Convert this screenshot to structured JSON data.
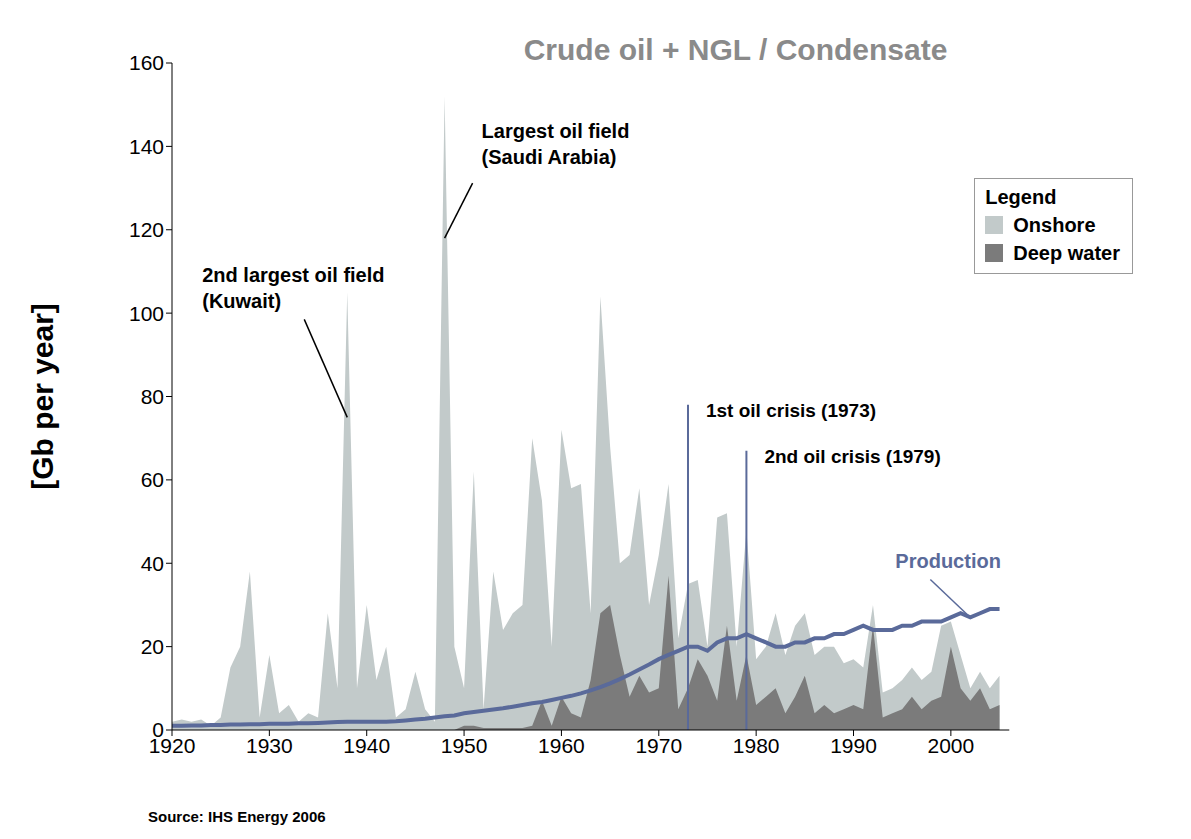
{
  "chart_data": {
    "type": "area",
    "title": "Crude oil + NGL / Condensate",
    "y_label": "[Gb per year]",
    "source": "Source: IHS Energy 2006",
    "legend_title": "Legend",
    "legend": "upper right",
    "x": [
      1920,
      1921,
      1922,
      1923,
      1924,
      1925,
      1926,
      1927,
      1928,
      1929,
      1930,
      1931,
      1932,
      1933,
      1934,
      1935,
      1936,
      1937,
      1938,
      1939,
      1940,
      1941,
      1942,
      1943,
      1944,
      1945,
      1946,
      1947,
      1948,
      1949,
      1950,
      1951,
      1952,
      1953,
      1954,
      1955,
      1956,
      1957,
      1958,
      1959,
      1960,
      1961,
      1962,
      1963,
      1964,
      1965,
      1966,
      1967,
      1968,
      1969,
      1970,
      1971,
      1972,
      1973,
      1974,
      1975,
      1976,
      1977,
      1978,
      1979,
      1980,
      1981,
      1982,
      1983,
      1984,
      1985,
      1986,
      1987,
      1988,
      1989,
      1990,
      1991,
      1992,
      1993,
      1994,
      1995,
      1996,
      1997,
      1998,
      1999,
      2000,
      2001,
      2002,
      2003,
      2004,
      2005
    ],
    "series": [
      {
        "name": "Onshore",
        "type": "area",
        "color": "#c2caca",
        "values": [
          2,
          2.5,
          2,
          2.5,
          1,
          3,
          15,
          20,
          38,
          3,
          18,
          4,
          6,
          2,
          4,
          3,
          28,
          10,
          105,
          10,
          30,
          12,
          20,
          3,
          5,
          14,
          5,
          2,
          152,
          20,
          10,
          62,
          5,
          38,
          24,
          28,
          30,
          70,
          55,
          20,
          72,
          58,
          59,
          28,
          104,
          68,
          40,
          42,
          58,
          30,
          42,
          59,
          22,
          35,
          36,
          20,
          51,
          52,
          20,
          48,
          17,
          20,
          28,
          18,
          25,
          28,
          18,
          20,
          20,
          16,
          17,
          15,
          30,
          9,
          10,
          12,
          15,
          12,
          14,
          25,
          26,
          18,
          10,
          14,
          10,
          13
        ]
      },
      {
        "name": "Deep water",
        "type": "area",
        "color": "#7b7b7b",
        "values": [
          0,
          0,
          0,
          0,
          0,
          0,
          0,
          0,
          0,
          0,
          0,
          0,
          0,
          0,
          0,
          0,
          0,
          0,
          0,
          0,
          0,
          0,
          0,
          0,
          0,
          0,
          0,
          0,
          0,
          0,
          1,
          1,
          0.5,
          0.5,
          0.5,
          0.5,
          0.5,
          1,
          7,
          1,
          8,
          4,
          3,
          12,
          28,
          30,
          18,
          8,
          13,
          9,
          10,
          37,
          5,
          10,
          17,
          13,
          7,
          25,
          7,
          18,
          6,
          8,
          10,
          4,
          8,
          13,
          4,
          6,
          4,
          5,
          6,
          5,
          25,
          3,
          4,
          5,
          8,
          5,
          7,
          8,
          20,
          10,
          7,
          10,
          5,
          6
        ]
      },
      {
        "name": "Production",
        "type": "line",
        "color": "#5a6a9a",
        "values": [
          1,
          1,
          1.1,
          1.1,
          1.2,
          1.2,
          1.3,
          1.3,
          1.4,
          1.4,
          1.5,
          1.5,
          1.5,
          1.6,
          1.6,
          1.7,
          1.8,
          1.9,
          2,
          2,
          2,
          2,
          2,
          2.1,
          2.3,
          2.5,
          2.7,
          3,
          3.3,
          3.5,
          4,
          4.3,
          4.6,
          4.9,
          5.2,
          5.6,
          6,
          6.4,
          6.7,
          7.2,
          7.7,
          8.2,
          8.8,
          9.5,
          10.3,
          11.2,
          12.2,
          13.3,
          14.5,
          15.7,
          17,
          18,
          19,
          20,
          20,
          19,
          21,
          22,
          22,
          23,
          22,
          21,
          20,
          20,
          21,
          21,
          22,
          22,
          23,
          23,
          24,
          25,
          24,
          24,
          24,
          25,
          25,
          26,
          26,
          26,
          27,
          28,
          27,
          28,
          29,
          29
        ]
      }
    ],
    "xlim": [
      1920,
      2006
    ],
    "xticks": [
      1920,
      1930,
      1940,
      1950,
      1960,
      1970,
      1980,
      1990,
      2000
    ],
    "ylim": [
      0,
      160
    ],
    "yticks": [
      0,
      20,
      40,
      60,
      80,
      100,
      120,
      140,
      160
    ],
    "grid": false,
    "annotations": [
      {
        "text": [
          "2nd largest oil field",
          "(Kuwait)"
        ],
        "x": 1938,
        "y": 75
      },
      {
        "text": [
          "Largest oil field",
          "(Saudi Arabia)"
        ],
        "x": 1948,
        "y": 118
      },
      {
        "text": [
          "Production"
        ],
        "x": 2002,
        "y": 27
      }
    ],
    "reference_lines": [
      {
        "label": "1st oil crisis (1973)",
        "x": 1973,
        "y": 78
      },
      {
        "label": "2nd oil crisis (1979)",
        "x": 1979,
        "y": 67
      }
    ]
  }
}
